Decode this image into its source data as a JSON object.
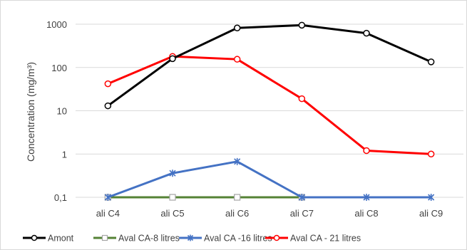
{
  "chart_data": {
    "type": "line",
    "yscale": "log",
    "ylabel": "Concentration (mg/m³)",
    "ylim": [
      0.1,
      1000
    ],
    "yticks": [
      {
        "value": 0.1,
        "label": "0,1"
      },
      {
        "value": 1,
        "label": "1"
      },
      {
        "value": 10,
        "label": "10"
      },
      {
        "value": 100,
        "label": "100"
      },
      {
        "value": 1000,
        "label": "1000"
      }
    ],
    "categories": [
      "ali C4",
      "ali C5",
      "ali C6",
      "ali C7",
      "ali C8",
      "ali C9"
    ],
    "grid": "horizontal",
    "legend_position": "bottom",
    "series": [
      {
        "name": "Amont",
        "color": "#000000",
        "marker": "circle",
        "values": [
          13,
          160,
          820,
          950,
          620,
          135
        ]
      },
      {
        "name": "Aval CA-8 litres",
        "color": "#548235",
        "marker": "square",
        "values": [
          0.1,
          0.1,
          0.1,
          0.1,
          null,
          null
        ]
      },
      {
        "name": "Aval CA -16 litres",
        "color": "#4472c4",
        "marker": "star",
        "values": [
          0.1,
          0.36,
          0.67,
          0.1,
          0.1,
          0.1
        ]
      },
      {
        "name": "Aval CA - 21 litres",
        "color": "#ff0000",
        "marker": "circle",
        "values": [
          42,
          180,
          155,
          19,
          1.2,
          1.0
        ]
      }
    ]
  }
}
